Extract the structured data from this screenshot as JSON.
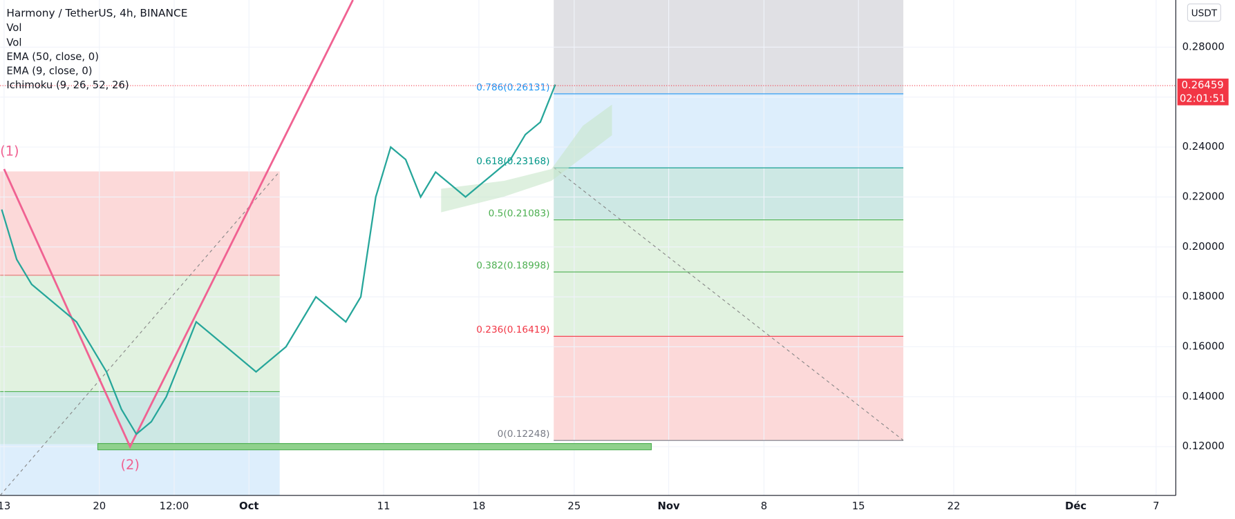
{
  "header": {
    "title": "Harmony / TetherUS, 4h, BINANCE",
    "indicators": [
      "Vol",
      "Vol",
      "EMA (50, close, 0)",
      "EMA (9, close, 0)",
      "Ichimoku (9, 26, 52, 26)"
    ]
  },
  "currency": "USDT",
  "price_axis": {
    "ticks": [
      {
        "value": 0.28,
        "label": "0.28000"
      },
      {
        "value": 0.26,
        "label": "0.26000"
      },
      {
        "value": 0.24,
        "label": "0.24000"
      },
      {
        "value": 0.22,
        "label": "0.22000"
      },
      {
        "value": 0.2,
        "label": "0.20000"
      },
      {
        "value": 0.18,
        "label": "0.18000"
      },
      {
        "value": 0.16,
        "label": "0.16000"
      },
      {
        "value": 0.14,
        "label": "0.14000"
      },
      {
        "value": 0.12,
        "label": "0.12000"
      }
    ]
  },
  "last_price": {
    "value": 0.26459,
    "label": "0.26459",
    "countdown": "02:01:51"
  },
  "time_axis": [
    "13",
    "20",
    "12:00",
    "Oct",
    "11",
    "18",
    "25",
    "Nov",
    "8",
    "15",
    "22",
    "Déc",
    "7"
  ],
  "fib_levels": [
    {
      "label": "0.786(0.26131)",
      "price": 0.26131,
      "color": "#2196f3"
    },
    {
      "label": "0.618(0.23168)",
      "price": 0.23168,
      "color": "#009688"
    },
    {
      "label": "0.5(0.21083)",
      "price": 0.21083,
      "color": "#4caf50"
    },
    {
      "label": "0.382(0.18998)",
      "price": 0.18998,
      "color": "#4caf50"
    },
    {
      "label": "0.236(0.16419)",
      "price": 0.16419,
      "color": "#f23645"
    },
    {
      "label": "0(0.12248)",
      "price": 0.12248,
      "color": "#787b86"
    }
  ],
  "wave_labels": [
    "(1)",
    "(2)"
  ],
  "price_closes": [
    0.215,
    0.195,
    0.185,
    0.18,
    0.175,
    0.17,
    0.16,
    0.15,
    0.135,
    0.125,
    0.13,
    0.14,
    0.155,
    0.17,
    0.165,
    0.16,
    0.155,
    0.15,
    0.155,
    0.16,
    0.17,
    0.18,
    0.175,
    0.17,
    0.18,
    0.22,
    0.24,
    0.235,
    0.22,
    0.23,
    0.225,
    0.22,
    0.225,
    0.23,
    0.235,
    0.245,
    0.25,
    0.265
  ]
}
